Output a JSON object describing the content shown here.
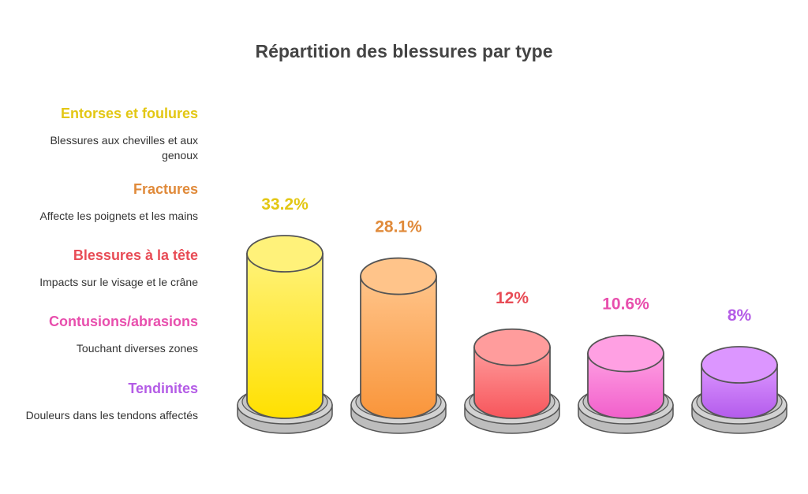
{
  "chart_data": {
    "type": "bar",
    "title": "Répartition des blessures par type",
    "categories": [
      "Entorses et foulures",
      "Fractures",
      "Blessures à la tête",
      "Contusions/abrasions",
      "Tendinites"
    ],
    "descriptions": [
      "Blessures aux chevilles et aux genoux",
      "Affecte les poignets et les mains",
      "Impacts sur le visage et le crâne",
      "Touchant diverses zones",
      "Douleurs dans les tendons affectés"
    ],
    "values": [
      33.2,
      28.1,
      12,
      10.6,
      8
    ],
    "value_labels": [
      "33.2%",
      "28.1%",
      "12%",
      "10.6%",
      "8%"
    ],
    "colors": [
      "#e3c714",
      "#e08a3a",
      "#e84c56",
      "#e84fad",
      "#b45ce6"
    ],
    "fills_top": [
      "#fff27a",
      "#ffc48a",
      "#ff9c9c",
      "#ffa0e3",
      "#dc96ff"
    ],
    "fills_bottom": [
      "#ffe000",
      "#f9953a",
      "#f7555b",
      "#f15fcb",
      "#b35bec"
    ],
    "xlabel": "",
    "ylabel": "",
    "ylim": [
      0,
      33.2
    ]
  }
}
